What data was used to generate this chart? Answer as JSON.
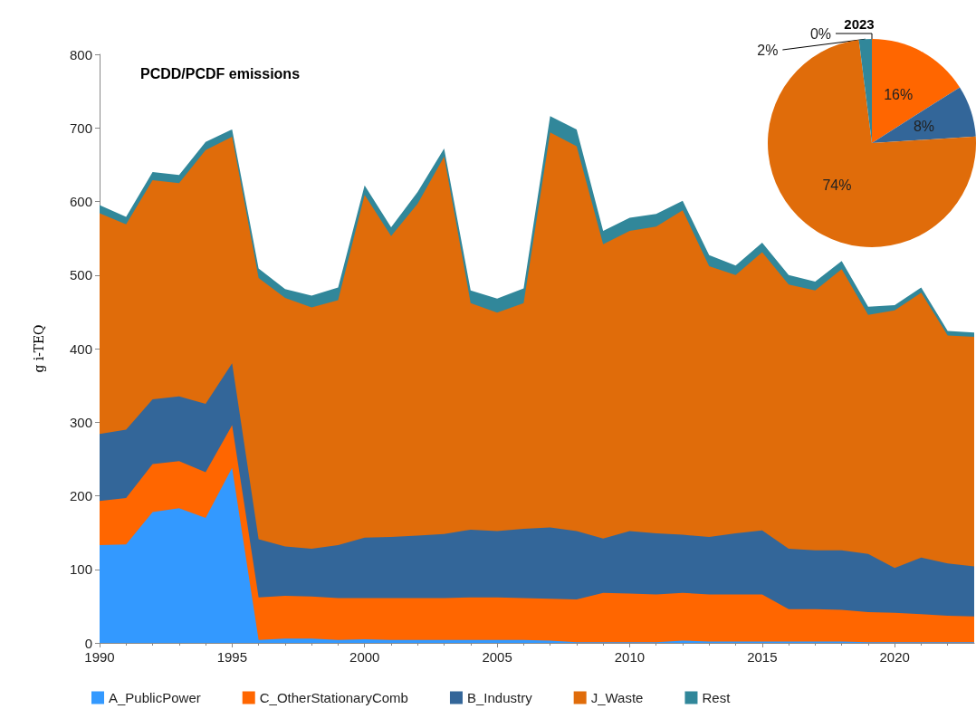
{
  "chart_data": [
    {
      "type": "area",
      "title": "PCDD/PCDF emissions",
      "ylabel": "g i-TEQ",
      "stacked": true,
      "grid": false,
      "legend": "bottom",
      "marker": "none",
      "x": [
        1990,
        1991,
        1992,
        1993,
        1994,
        1995,
        1996,
        1997,
        1998,
        1999,
        2000,
        2001,
        2002,
        2003,
        2004,
        2005,
        2006,
        2007,
        2008,
        2009,
        2010,
        2011,
        2012,
        2013,
        2014,
        2015,
        2016,
        2017,
        2018,
        2019,
        2020,
        2021,
        2022,
        2023
      ],
      "xlim": [
        1990,
        2023
      ],
      "xticks": [
        1990,
        1995,
        2000,
        2005,
        2010,
        2015,
        2020
      ],
      "ylim": [
        0,
        800
      ],
      "yticks": [
        0,
        100,
        200,
        300,
        400,
        500,
        600,
        700,
        800
      ],
      "series": [
        {
          "name": "A_PublicPower",
          "color": "#3399ff",
          "values": [
            133,
            134,
            178,
            183,
            170,
            238,
            4,
            6,
            6,
            4,
            5,
            4,
            4,
            4,
            4,
            4,
            4,
            3,
            1,
            1,
            1,
            1,
            3,
            2,
            2,
            2,
            2,
            2,
            2,
            1,
            1,
            1,
            1,
            1
          ]
        },
        {
          "name": "C_OtherStationaryComb",
          "color": "#ff6600",
          "values": [
            60,
            63,
            65,
            64,
            62,
            58,
            58,
            58,
            57,
            57,
            56,
            57,
            57,
            57,
            58,
            58,
            57,
            57,
            58,
            67,
            66,
            65,
            65,
            64,
            64,
            64,
            44,
            44,
            43,
            41,
            40,
            38,
            36,
            35
          ]
        },
        {
          "name": "B_Industry",
          "color": "#336699",
          "values": [
            91,
            93,
            88,
            88,
            93,
            84,
            79,
            67,
            65,
            72,
            82,
            83,
            85,
            87,
            92,
            90,
            94,
            97,
            93,
            74,
            85,
            83,
            79,
            78,
            83,
            87,
            82,
            80,
            81,
            79,
            61,
            77,
            71,
            68
          ]
        },
        {
          "name": "J_Waste",
          "color": "#e06c0a",
          "values": [
            300,
            279,
            298,
            290,
            345,
            308,
            355,
            338,
            328,
            333,
            466,
            409,
            451,
            513,
            308,
            297,
            307,
            537,
            523,
            400,
            408,
            417,
            441,
            368,
            351,
            378,
            359,
            353,
            382,
            325,
            350,
            360,
            310,
            312
          ]
        },
        {
          "name": "Rest",
          "color": "#31879a",
          "values": [
            11,
            10,
            11,
            11,
            11,
            10,
            13,
            12,
            16,
            17,
            13,
            12,
            16,
            11,
            17,
            19,
            20,
            22,
            23,
            18,
            18,
            17,
            13,
            15,
            13,
            13,
            13,
            12,
            11,
            11,
            7,
            7,
            6,
            6
          ]
        }
      ]
    },
    {
      "type": "pie",
      "title": "2023",
      "categories": [
        null,
        null,
        null,
        null,
        null
      ],
      "values": [
        0,
        16,
        8,
        74,
        2
      ],
      "colors": [
        "#3399ff",
        "#ff6600",
        "#336699",
        "#e06c0a",
        "#31879a"
      ],
      "value_labels": [
        "0%",
        "16%",
        "8%",
        "74%",
        "2%"
      ],
      "legend": false
    }
  ]
}
